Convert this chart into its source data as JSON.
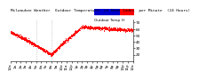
{
  "title": "Milwaukee Weather  Outdoor Temperature  vs Heat Index  per Minute  (24 Hours)",
  "legend_temp_color": "#0000cc",
  "legend_heat_color": "#ff0000",
  "background_color": "#ffffff",
  "plot_bg_color": "#ffffff",
  "dot_color": "#ff0000",
  "dot_size": 0.4,
  "ylim": [
    10,
    75
  ],
  "xlim": [
    0,
    1440
  ],
  "yticks": [
    20,
    30,
    40,
    50,
    60,
    70
  ],
  "ytick_labels": [
    "20",
    "30",
    "40",
    "50",
    "60",
    "70"
  ],
  "xtick_positions": [
    0,
    60,
    120,
    180,
    240,
    300,
    360,
    420,
    480,
    540,
    600,
    660,
    720,
    780,
    840,
    900,
    960,
    1020,
    1080,
    1140,
    1200,
    1260,
    1320,
    1380,
    1440
  ],
  "xtick_labels": [
    "12a",
    "1a",
    "2a",
    "3a",
    "4a",
    "5a",
    "6a",
    "7a",
    "8a",
    "9a",
    "10a",
    "11a",
    "12p",
    "1p",
    "2p",
    "3p",
    "4p",
    "5p",
    "6p",
    "7p",
    "8p",
    "9p",
    "10p",
    "11p",
    "12a"
  ],
  "vline_positions": [
    300,
    480
  ],
  "vline_color": "#aaaaaa",
  "vline_style": ":",
  "title_fontsize": 3.2,
  "tick_fontsize": 3.0,
  "legend_label_fontsize": 3.0
}
